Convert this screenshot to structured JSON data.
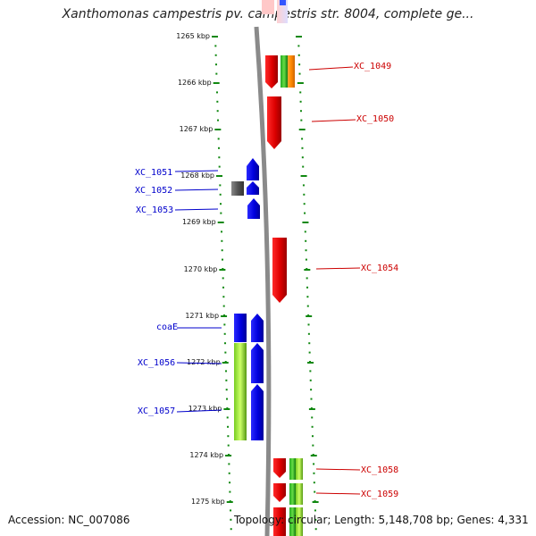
{
  "title": "Xanthomonas campestris pv. campestris str. 8004, complete ge...",
  "accession": "Accession: NC_007086",
  "summary": "Topology: circular; Length: 5,148,708 bp; Genes: 4,331",
  "colors": {
    "minus_strand": "#0000ee",
    "plus_strand": "#ee0000",
    "minus_label": "#0000cc",
    "plus_label": "#cc0000",
    "tick": "#118811",
    "backbone": "#8a8a8a"
  },
  "scale": {
    "unit": "kbp",
    "labels": [
      "1265 kbp",
      "1266 kbp",
      "1267 kbp",
      "1268 kbp",
      "1269 kbp",
      "1270 kbp",
      "1271 kbp",
      "1272 kbp",
      "1273 kbp",
      "1274 kbp",
      "1275 kbp"
    ]
  },
  "genes": [
    {
      "label": "XC_1049",
      "strand": "plus"
    },
    {
      "label": "XC_1050",
      "strand": "plus"
    },
    {
      "label": "XC_1051",
      "strand": "minus"
    },
    {
      "label": "XC_1052",
      "strand": "minus"
    },
    {
      "label": "XC_1053",
      "strand": "minus"
    },
    {
      "label": "XC_1054",
      "strand": "plus"
    },
    {
      "label": "coaE",
      "strand": "minus"
    },
    {
      "label": "XC_1056",
      "strand": "minus"
    },
    {
      "label": "XC_1057",
      "strand": "minus"
    },
    {
      "label": "XC_1058",
      "strand": "plus"
    },
    {
      "label": "XC_1059",
      "strand": "plus"
    }
  ]
}
